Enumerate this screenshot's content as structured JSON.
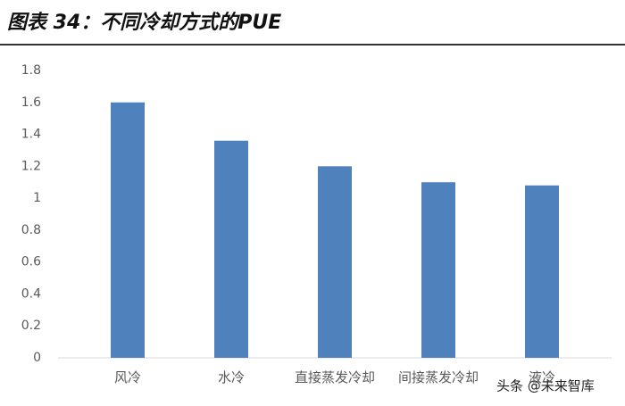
{
  "chart_data": {
    "type": "bar",
    "title": "图表 34：不同冷却方式的PUE",
    "categories": [
      "风冷",
      "水冷",
      "直接蒸发冷却",
      "间接蒸发冷却",
      "液冷"
    ],
    "values": [
      1.6,
      1.36,
      1.2,
      1.1,
      1.08
    ],
    "color": "#4f81bd",
    "ylim": [
      0,
      1.8
    ],
    "yticks": [
      0,
      0.2,
      0.4,
      0.6,
      0.8,
      1,
      1.2,
      1.4,
      1.6,
      1.8
    ],
    "grid": false,
    "watermark": "头条 @未来智库"
  }
}
